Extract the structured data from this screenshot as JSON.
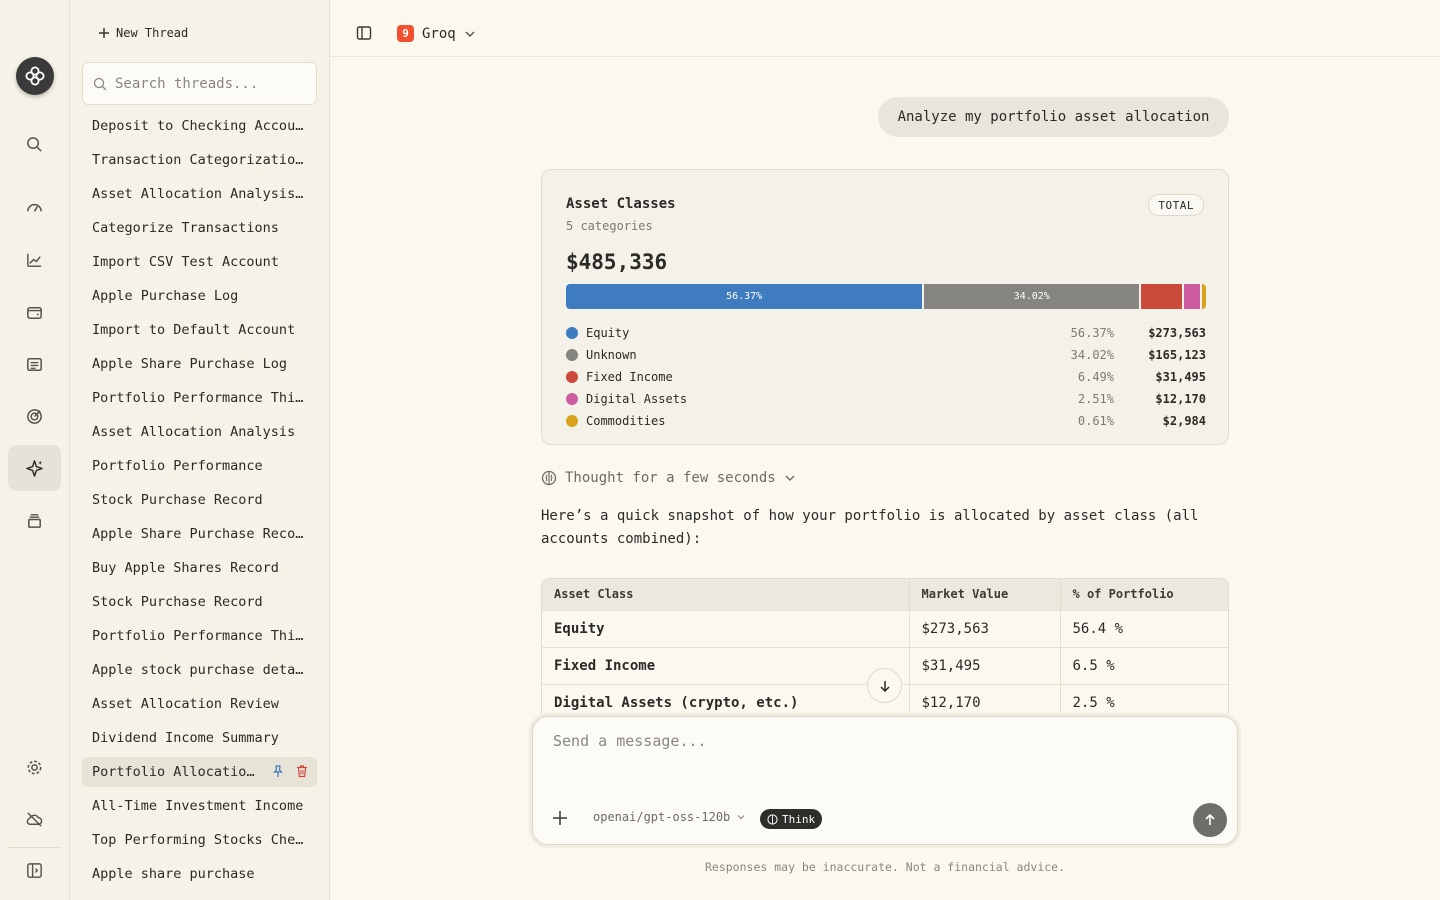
{
  "sidebar": {
    "new_thread_label": "New Thread",
    "search_placeholder": "Search threads...",
    "threads": [
      "Deposit to Checking Account",
      "Transaction Categorization Request",
      "Asset Allocation Analysis Request",
      "Categorize Transactions",
      "Import CSV Test Account",
      "Apple Purchase Log",
      "Import to Default Account",
      "Apple Share Purchase Log",
      "Portfolio Performance This Year",
      "Asset Allocation Analysis",
      "Portfolio Performance",
      "Stock Purchase Record",
      "Apple Share Purchase Record",
      "Buy Apple Shares Record",
      "Stock Purchase Record",
      "Portfolio Performance This Month",
      "Apple stock purchase details",
      "Asset Allocation Review",
      "Dividend Income Summary",
      "Portfolio Allocation Overview",
      "All-Time Investment Income",
      "Top Performing Stocks Check",
      "Apple share purchase"
    ],
    "active_thread_index": 19
  },
  "topbar": {
    "provider_badge": "9",
    "provider_name": "Groq"
  },
  "chat": {
    "user_message": "Analyze my portfolio asset allocation",
    "card": {
      "title": "Asset Classes",
      "subtitle": "5 categories",
      "badge": "TOTAL",
      "total": "$485,336",
      "segments": [
        {
          "name": "Equity",
          "pct_label": "56.37%",
          "pct": 56.37,
          "value": "$273,563",
          "color": "#3e7bbf",
          "bar_label": "56.37%"
        },
        {
          "name": "Unknown",
          "pct_label": "34.02%",
          "pct": 34.02,
          "value": "$165,123",
          "color": "#868480",
          "bar_label": "34.02%"
        },
        {
          "name": "Fixed Income",
          "pct_label": "6.49%",
          "pct": 6.49,
          "value": "$31,495",
          "color": "#cc4a3c",
          "bar_label": ""
        },
        {
          "name": "Digital Assets",
          "pct_label": "2.51%",
          "pct": 2.51,
          "value": "$12,170",
          "color": "#cc5ba0",
          "bar_label": ""
        },
        {
          "name": "Commodities",
          "pct_label": "0.61%",
          "pct": 0.61,
          "value": "$2,984",
          "color": "#d9a21b",
          "bar_label": ""
        }
      ]
    },
    "thought_label": "Thought for a few seconds",
    "answer_text": "Here’s a quick snapshot of how your portfolio is allocated by asset class (all accounts combined):",
    "table": {
      "headers": [
        "Asset Class",
        "Market Value",
        "% of Portfolio"
      ],
      "rows": [
        [
          "Equity",
          "$273,563",
          "56.4 %"
        ],
        [
          "Fixed Income",
          "$31,495",
          "6.5 %"
        ],
        [
          "Digital Assets (crypto, etc.)",
          "$12,170",
          "2.5 %"
        ]
      ]
    }
  },
  "composer": {
    "placeholder": "Send a message...",
    "model": "openai/gpt-oss-120b",
    "think_label": "Think",
    "disclaimer": "Responses may be inaccurate. Not a financial advice."
  }
}
